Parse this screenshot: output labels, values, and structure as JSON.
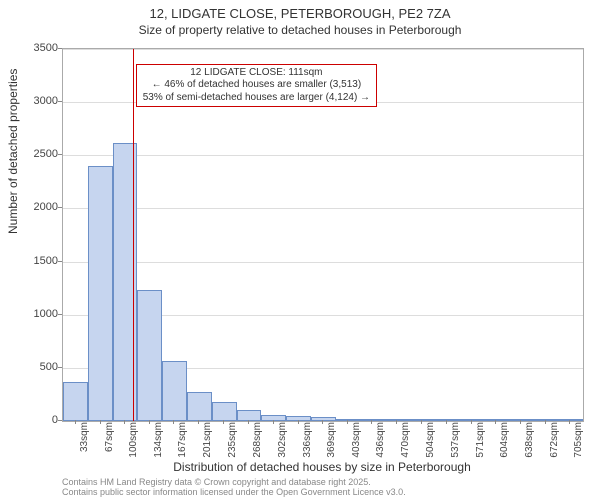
{
  "chart": {
    "type": "histogram",
    "title_line1": "12, LIDGATE CLOSE, PETERBOROUGH, PE2 7ZA",
    "title_line2": "Size of property relative to detached houses in Peterborough",
    "title_fontsize": 13,
    "subtitle_fontsize": 12,
    "y_axis_label": "Number of detached properties",
    "x_axis_label": "Distribution of detached houses by size in Peterborough",
    "axis_label_fontsize": 12,
    "tick_fontsize": 11,
    "xtick_fontsize": 10,
    "background_color": "#ffffff",
    "grid_color": "#dddddd",
    "axis_color": "#888888",
    "bar_fill_color": "#c6d5ef",
    "bar_border_color": "#6b8fc7",
    "marker_line_color": "#cc0000",
    "annotation_border_color": "#cc0000",
    "annotation_bg_color": "#ffffff",
    "footer_color": "#888888",
    "ylim": [
      0,
      3500
    ],
    "ytick_step": 500,
    "yticks": [
      0,
      500,
      1000,
      1500,
      2000,
      2500,
      3000,
      3500
    ],
    "x_data_min": 16,
    "x_data_max": 722,
    "xticks": [
      {
        "pos": 33,
        "label": "33sqm"
      },
      {
        "pos": 67,
        "label": "67sqm"
      },
      {
        "pos": 100,
        "label": "100sqm"
      },
      {
        "pos": 134,
        "label": "134sqm"
      },
      {
        "pos": 167,
        "label": "167sqm"
      },
      {
        "pos": 201,
        "label": "201sqm"
      },
      {
        "pos": 235,
        "label": "235sqm"
      },
      {
        "pos": 268,
        "label": "268sqm"
      },
      {
        "pos": 302,
        "label": "302sqm"
      },
      {
        "pos": 336,
        "label": "336sqm"
      },
      {
        "pos": 369,
        "label": "369sqm"
      },
      {
        "pos": 403,
        "label": "403sqm"
      },
      {
        "pos": 436,
        "label": "436sqm"
      },
      {
        "pos": 470,
        "label": "470sqm"
      },
      {
        "pos": 504,
        "label": "504sqm"
      },
      {
        "pos": 537,
        "label": "537sqm"
      },
      {
        "pos": 571,
        "label": "571sqm"
      },
      {
        "pos": 604,
        "label": "604sqm"
      },
      {
        "pos": 638,
        "label": "638sqm"
      },
      {
        "pos": 672,
        "label": "672sqm"
      },
      {
        "pos": 705,
        "label": "705sqm"
      }
    ],
    "bars": [
      {
        "x0": 16,
        "x1": 50,
        "value": 370
      },
      {
        "x0": 50,
        "x1": 84,
        "value": 2400
      },
      {
        "x0": 84,
        "x1": 117,
        "value": 2620
      },
      {
        "x0": 117,
        "x1": 151,
        "value": 1230
      },
      {
        "x0": 151,
        "x1": 184,
        "value": 560
      },
      {
        "x0": 184,
        "x1": 218,
        "value": 270
      },
      {
        "x0": 218,
        "x1": 252,
        "value": 180
      },
      {
        "x0": 252,
        "x1": 285,
        "value": 100
      },
      {
        "x0": 285,
        "x1": 319,
        "value": 55
      },
      {
        "x0": 319,
        "x1": 353,
        "value": 45
      },
      {
        "x0": 353,
        "x1": 386,
        "value": 40
      },
      {
        "x0": 386,
        "x1": 420,
        "value": 15
      },
      {
        "x0": 420,
        "x1": 453,
        "value": 10
      },
      {
        "x0": 453,
        "x1": 487,
        "value": 8
      },
      {
        "x0": 487,
        "x1": 521,
        "value": 6
      },
      {
        "x0": 521,
        "x1": 554,
        "value": 5
      },
      {
        "x0": 554,
        "x1": 588,
        "value": 4
      },
      {
        "x0": 588,
        "x1": 621,
        "value": 3
      },
      {
        "x0": 621,
        "x1": 655,
        "value": 3
      },
      {
        "x0": 655,
        "x1": 689,
        "value": 3
      },
      {
        "x0": 689,
        "x1": 722,
        "value": 2
      }
    ],
    "marker": {
      "x": 111
    },
    "annotation": {
      "line1": "12 LIDGATE CLOSE: 111sqm",
      "line2": "← 46% of detached houses are smaller (3,513)",
      "line3": "53% of semi-detached houses are larger (4,124) →",
      "fontsize": 10,
      "x_left_data": 112,
      "y_top_data": 3360
    },
    "footer_line1": "Contains HM Land Registry data © Crown copyright and database right 2025.",
    "footer_line2": "Contains public sector information licensed under the Open Government Licence v3.0."
  }
}
